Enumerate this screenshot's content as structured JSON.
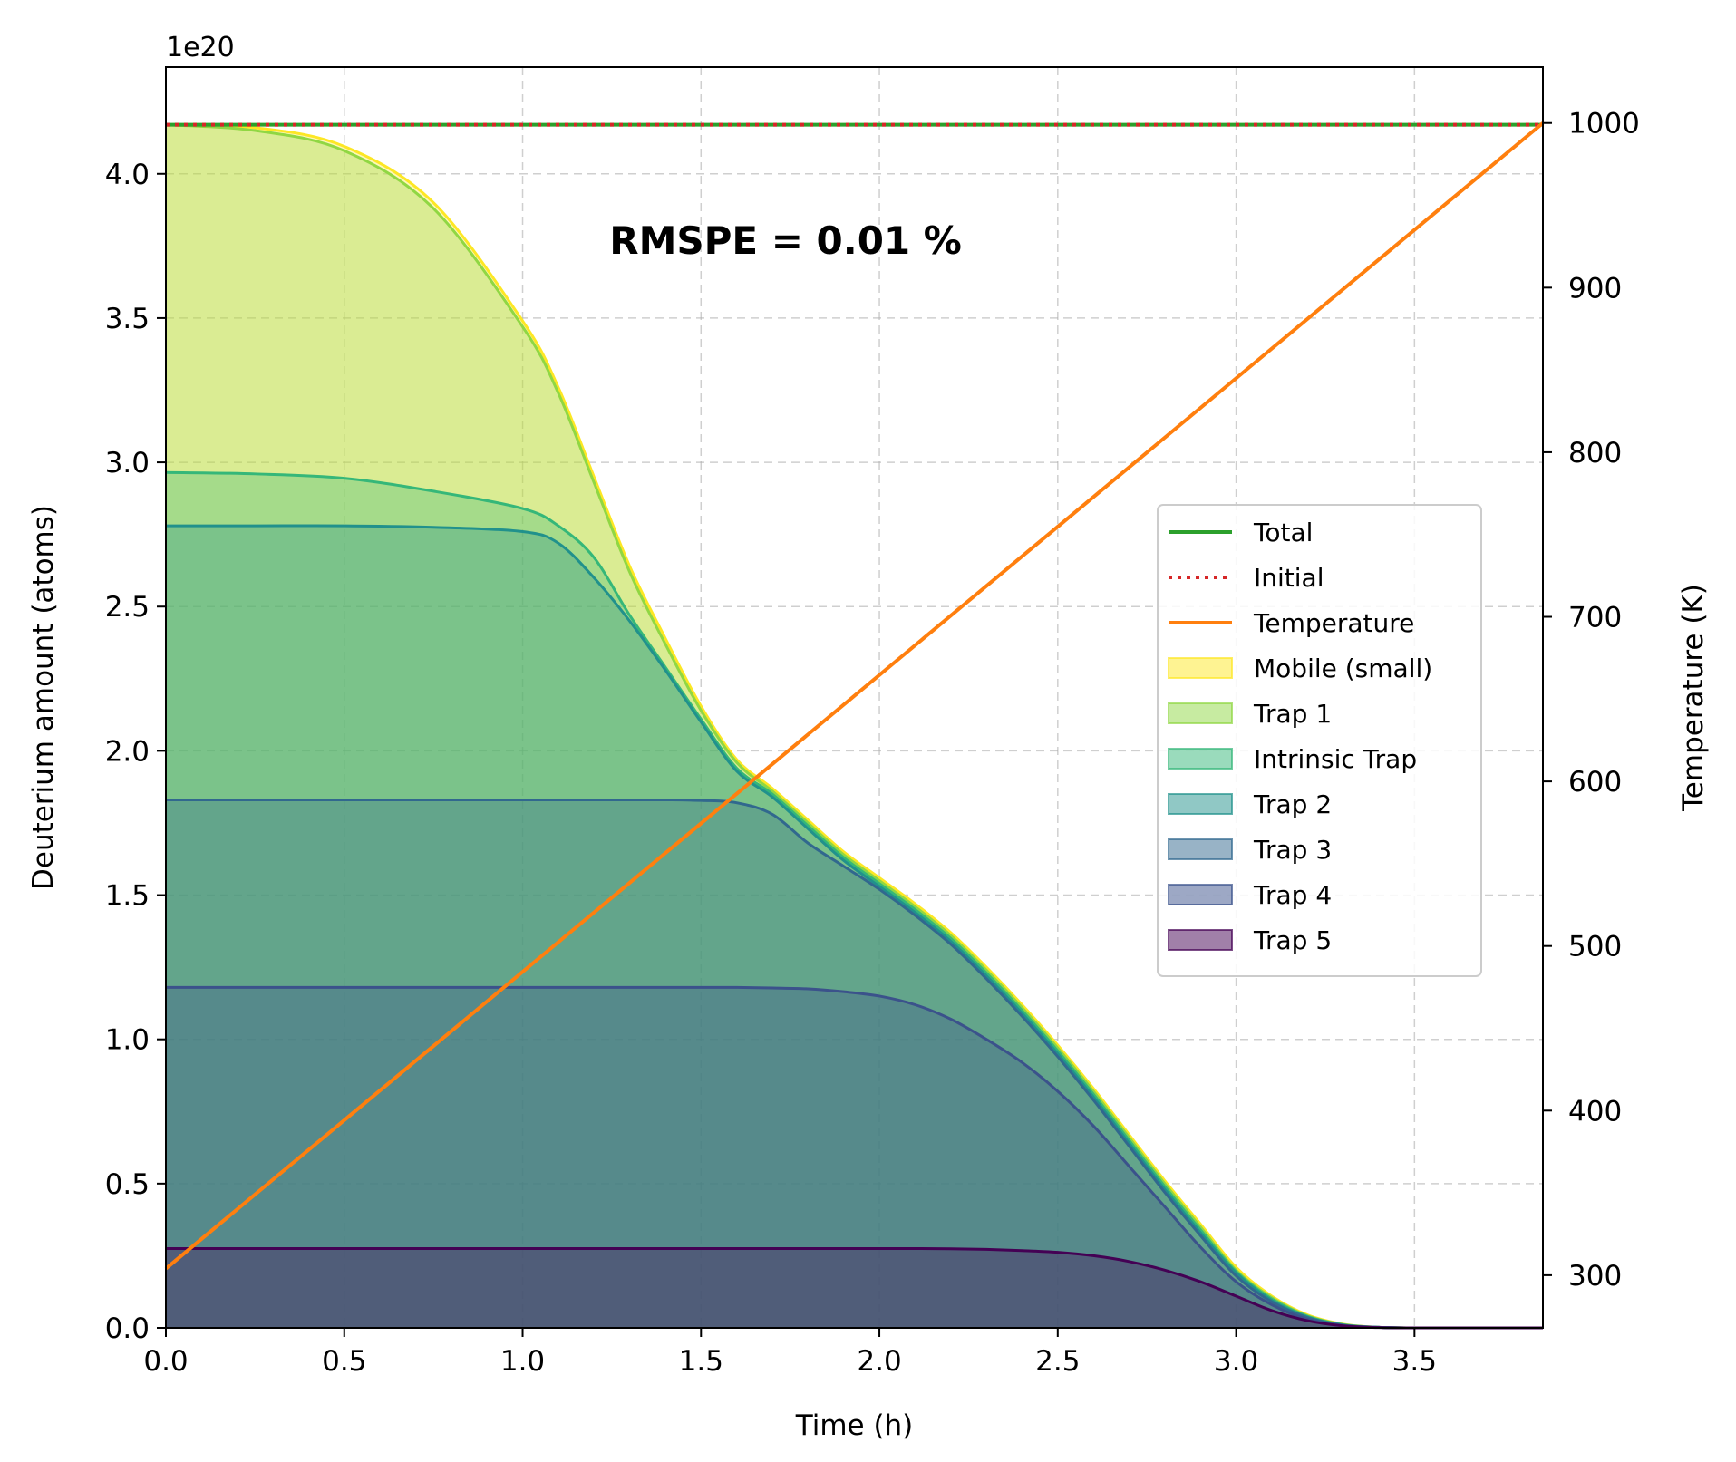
{
  "chart_data": {
    "type": "area",
    "title": "",
    "xlabel": "Time (h)",
    "ylabel": "Deuterium amount (atoms)",
    "y2label": "Temperature (K)",
    "offset_label": "1e20",
    "annotation": "RMSPE = 0.01 %",
    "xlim": [
      0,
      3.86
    ],
    "ylim": [
      0,
      4.37
    ],
    "y2lim": [
      268,
      1034
    ],
    "xticks": [
      "0.0",
      "0.5",
      "1.0",
      "1.5",
      "2.0",
      "2.5",
      "3.0",
      "3.5"
    ],
    "yticks": [
      "0.0",
      "0.5",
      "1.0",
      "1.5",
      "2.0",
      "2.5",
      "3.0",
      "3.5",
      "4.0"
    ],
    "y2ticks": [
      "300",
      "400",
      "500",
      "600",
      "700",
      "800",
      "900",
      "1000"
    ],
    "grid": true,
    "legend_position": "center-right",
    "x": [
      0,
      0.25,
      0.5,
      0.75,
      1.0,
      1.1,
      1.2,
      1.3,
      1.4,
      1.5,
      1.6,
      1.7,
      1.8,
      1.9,
      2.0,
      2.1,
      2.2,
      2.3,
      2.4,
      2.5,
      2.6,
      2.7,
      2.8,
      2.9,
      3.0,
      3.1,
      3.2,
      3.3,
      3.4,
      3.5,
      3.6,
      3.7,
      3.86
    ],
    "series": [
      {
        "name": "Trap 5",
        "kind": "stack",
        "color": "#440154",
        "values": [
          0.275,
          0.275,
          0.275,
          0.275,
          0.275,
          0.275,
          0.275,
          0.275,
          0.275,
          0.275,
          0.275,
          0.275,
          0.275,
          0.275,
          0.275,
          0.275,
          0.274,
          0.272,
          0.268,
          0.262,
          0.25,
          0.23,
          0.2,
          0.16,
          0.11,
          0.06,
          0.025,
          0.007,
          0.001,
          0,
          0,
          0,
          0
        ]
      },
      {
        "name": "Trap 4",
        "kind": "stack",
        "color": "#3b528b",
        "values": [
          1.18,
          1.18,
          1.18,
          1.18,
          1.18,
          1.18,
          1.18,
          1.18,
          1.18,
          1.18,
          1.18,
          1.178,
          1.175,
          1.165,
          1.15,
          1.12,
          1.07,
          1.0,
          0.92,
          0.82,
          0.7,
          0.56,
          0.42,
          0.28,
          0.16,
          0.08,
          0.03,
          0.008,
          0.002,
          0,
          0,
          0,
          0
        ]
      },
      {
        "name": "Trap 3",
        "kind": "stack",
        "color": "#31688e",
        "values": [
          1.83,
          1.83,
          1.83,
          1.83,
          1.83,
          1.83,
          1.83,
          1.83,
          1.83,
          1.828,
          1.82,
          1.78,
          1.68,
          1.6,
          1.52,
          1.43,
          1.33,
          1.21,
          1.08,
          0.94,
          0.79,
          0.63,
          0.47,
          0.32,
          0.18,
          0.09,
          0.035,
          0.009,
          0.002,
          0,
          0,
          0,
          0
        ]
      },
      {
        "name": "Trap 2",
        "kind": "stack",
        "color": "#21918c",
        "values": [
          2.78,
          2.78,
          2.78,
          2.775,
          2.76,
          2.72,
          2.6,
          2.45,
          2.28,
          2.1,
          1.93,
          1.84,
          1.73,
          1.62,
          1.53,
          1.44,
          1.34,
          1.22,
          1.09,
          0.95,
          0.8,
          0.64,
          0.48,
          0.33,
          0.19,
          0.095,
          0.037,
          0.01,
          0.002,
          0,
          0,
          0,
          0
        ]
      },
      {
        "name": "Intrinsic Trap",
        "kind": "stack",
        "color": "#35b779",
        "values": [
          2.965,
          2.96,
          2.945,
          2.9,
          2.84,
          2.78,
          2.67,
          2.47,
          2.29,
          2.11,
          1.94,
          1.85,
          1.74,
          1.63,
          1.54,
          1.45,
          1.35,
          1.23,
          1.1,
          0.96,
          0.81,
          0.65,
          0.49,
          0.34,
          0.195,
          0.1,
          0.04,
          0.011,
          0.002,
          0,
          0,
          0,
          0
        ]
      },
      {
        "name": "Trap 1",
        "kind": "stack",
        "color": "#90d743",
        "values": [
          4.17,
          4.15,
          4.08,
          3.88,
          3.47,
          3.24,
          2.93,
          2.62,
          2.37,
          2.14,
          1.96,
          1.86,
          1.75,
          1.64,
          1.55,
          1.46,
          1.36,
          1.24,
          1.11,
          0.97,
          0.82,
          0.66,
          0.5,
          0.35,
          0.2,
          0.105,
          0.042,
          0.012,
          0.002,
          0,
          0,
          0,
          0
        ]
      },
      {
        "name": "Mobile (small)",
        "kind": "stack",
        "color": "#fde725",
        "values": [
          4.17,
          4.16,
          4.095,
          3.9,
          3.49,
          3.26,
          2.95,
          2.64,
          2.39,
          2.155,
          1.97,
          1.87,
          1.76,
          1.65,
          1.56,
          1.47,
          1.37,
          1.25,
          1.12,
          0.98,
          0.83,
          0.67,
          0.51,
          0.36,
          0.21,
          0.11,
          0.045,
          0.013,
          0.002,
          0,
          0,
          0,
          0
        ]
      },
      {
        "name": "Total",
        "kind": "line",
        "color": "#2ca02c",
        "style": "solid",
        "value": 4.17
      },
      {
        "name": "Initial",
        "kind": "line",
        "color": "#d62728",
        "style": "dotted",
        "value": 4.17
      },
      {
        "name": "Temperature",
        "kind": "line",
        "color": "#ff7f0e",
        "axis": "right",
        "x": [
          0,
          3.86
        ],
        "values": [
          304,
          1000
        ]
      }
    ],
    "legend": [
      "Total",
      "Initial",
      "Temperature",
      "Mobile (small)",
      "Trap 1",
      "Intrinsic Trap",
      "Trap 2",
      "Trap 3",
      "Trap 4",
      "Trap 5"
    ]
  }
}
